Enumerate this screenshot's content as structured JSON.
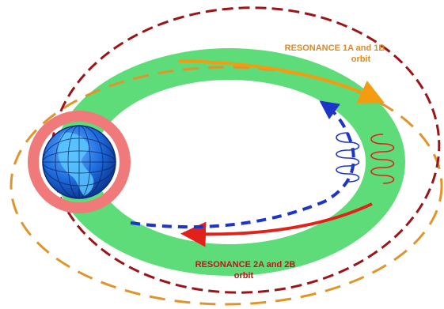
{
  "labels": {
    "resonance_1": {
      "line1": "RESONANCE 1A and 1B",
      "line2": "orbit"
    },
    "resonance_2": {
      "line1": "RESONANCE 2A and 2B",
      "line2": "orbit"
    }
  },
  "colors": {
    "green_belt": "#5fdc7a",
    "dark_red_orbit": "#9b1518",
    "orange_orbit": "#e0952a",
    "orange_arrow": "#f39c12",
    "red_arrow": "#e0221b",
    "blue_path": "#1d36c9",
    "earth_ring": "#f07a7a",
    "label_orange": "#e08a1e",
    "label_red": "#b5191c"
  },
  "icons": [
    "earth-globe-icon",
    "blue-spiral-icon",
    "red-spiral-icon"
  ]
}
